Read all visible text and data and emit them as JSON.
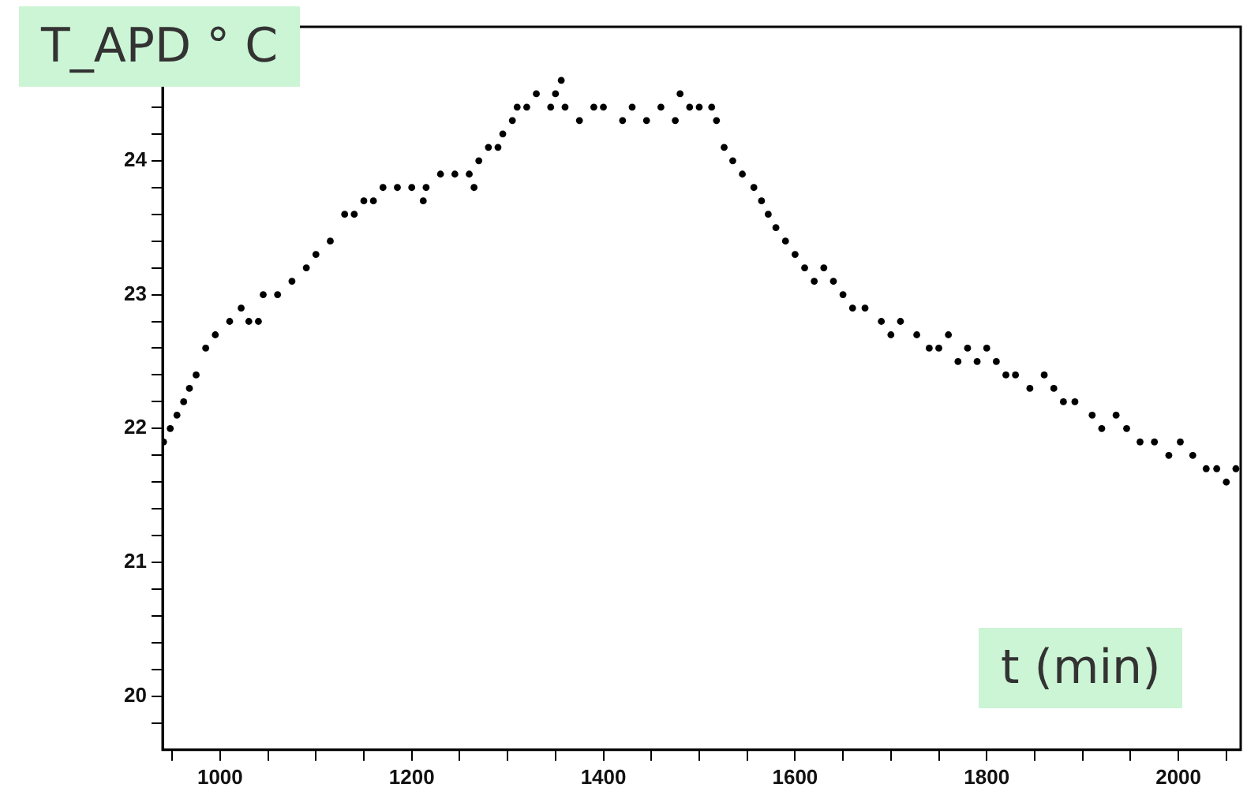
{
  "chart_data": {
    "type": "scatter",
    "xlabel": "t (min)",
    "ylabel": "T_APD ° C",
    "xlim": [
      940,
      2065
    ],
    "ylim": [
      19.6,
      25.0
    ],
    "xticks": [
      {
        "value": 950,
        "label": null
      },
      1000,
      {
        "value": 1050,
        "label": null
      },
      {
        "value": 1100,
        "label": null
      },
      {
        "value": 1150,
        "label": null
      },
      1200,
      {
        "value": 1250,
        "label": null
      },
      {
        "value": 1300,
        "label": null
      },
      {
        "value": 1350,
        "label": null
      },
      1400,
      {
        "value": 1450,
        "label": null
      },
      {
        "value": 1500,
        "label": null
      },
      {
        "value": 1550,
        "label": null
      },
      1600,
      {
        "value": 1650,
        "label": null
      },
      {
        "value": 1700,
        "label": null
      },
      {
        "value": 1750,
        "label": null
      },
      1800,
      {
        "value": 1850,
        "label": null
      },
      {
        "value": 1900,
        "label": null
      },
      {
        "value": 1950,
        "label": null
      },
      2000,
      {
        "value": 2050,
        "label": null
      }
    ],
    "yticks": [
      {
        "value": 19.8,
        "label": null
      },
      20,
      {
        "value": 20.2,
        "label": null
      },
      {
        "value": 20.4,
        "label": null
      },
      {
        "value": 20.6,
        "label": null
      },
      {
        "value": 20.8,
        "label": null
      },
      21,
      {
        "value": 21.2,
        "label": null
      },
      {
        "value": 21.4,
        "label": null
      },
      {
        "value": 21.6,
        "label": null
      },
      {
        "value": 21.8,
        "label": null
      },
      22,
      {
        "value": 22.2,
        "label": null
      },
      {
        "value": 22.4,
        "label": null
      },
      {
        "value": 22.6,
        "label": null
      },
      {
        "value": 22.8,
        "label": null
      },
      23,
      {
        "value": 23.2,
        "label": null
      },
      {
        "value": 23.4,
        "label": null
      },
      {
        "value": 23.6,
        "label": null
      },
      {
        "value": 23.8,
        "label": null
      },
      24,
      {
        "value": 24.2,
        "label": null
      },
      {
        "value": 24.4,
        "label": null
      },
      {
        "value": 24.6,
        "label": null
      },
      {
        "value": 24.8,
        "label": null
      }
    ],
    "grid": false,
    "legend": false,
    "marker": "circle",
    "series": [
      {
        "color": "#000000",
        "x": [
          941,
          948,
          955,
          962,
          968,
          975,
          985,
          995,
          1010,
          1022,
          1030,
          1040,
          1045,
          1060,
          1075,
          1090,
          1100,
          1115,
          1130,
          1140,
          1150,
          1160,
          1170,
          1185,
          1200,
          1212,
          1215,
          1230,
          1245,
          1260,
          1265,
          1270,
          1280,
          1290,
          1295,
          1305,
          1310,
          1320,
          1330,
          1345,
          1350,
          1356,
          1360,
          1375,
          1390,
          1400,
          1420,
          1430,
          1445,
          1460,
          1475,
          1480,
          1490,
          1500,
          1513,
          1518,
          1526,
          1535,
          1545,
          1557,
          1565,
          1572,
          1580,
          1590,
          1600,
          1610,
          1620,
          1630,
          1640,
          1650,
          1660,
          1673,
          1690,
          1700,
          1710,
          1727,
          1740,
          1750,
          1760,
          1770,
          1780,
          1790,
          1800,
          1810,
          1820,
          1830,
          1845,
          1860,
          1870,
          1880,
          1892,
          1910,
          1920,
          1935,
          1946,
          1960,
          1975,
          1990,
          2002,
          2015,
          2029,
          2040,
          2050,
          2060
        ],
        "values": [
          21.9,
          22.0,
          22.1,
          22.2,
          22.3,
          22.4,
          22.6,
          22.7,
          22.8,
          22.9,
          22.8,
          22.8,
          23.0,
          23.0,
          23.1,
          23.2,
          23.3,
          23.4,
          23.6,
          23.6,
          23.7,
          23.7,
          23.8,
          23.8,
          23.8,
          23.7,
          23.8,
          23.9,
          23.9,
          23.9,
          23.8,
          24.0,
          24.1,
          24.1,
          24.2,
          24.3,
          24.4,
          24.4,
          24.5,
          24.4,
          24.5,
          24.6,
          24.4,
          24.3,
          24.4,
          24.4,
          24.3,
          24.4,
          24.3,
          24.4,
          24.3,
          24.5,
          24.4,
          24.4,
          24.4,
          24.3,
          24.1,
          24.0,
          23.9,
          23.8,
          23.7,
          23.6,
          23.5,
          23.4,
          23.3,
          23.2,
          23.1,
          23.2,
          23.1,
          23.0,
          22.9,
          22.9,
          22.8,
          22.7,
          22.8,
          22.7,
          22.6,
          22.6,
          22.7,
          22.5,
          22.6,
          22.5,
          22.6,
          22.5,
          22.4,
          22.4,
          22.3,
          22.4,
          22.3,
          22.2,
          22.2,
          22.1,
          22.0,
          22.1,
          22.0,
          21.9,
          21.9,
          21.8,
          21.9,
          21.8,
          21.7,
          21.7,
          21.6,
          21.7
        ]
      }
    ]
  }
}
